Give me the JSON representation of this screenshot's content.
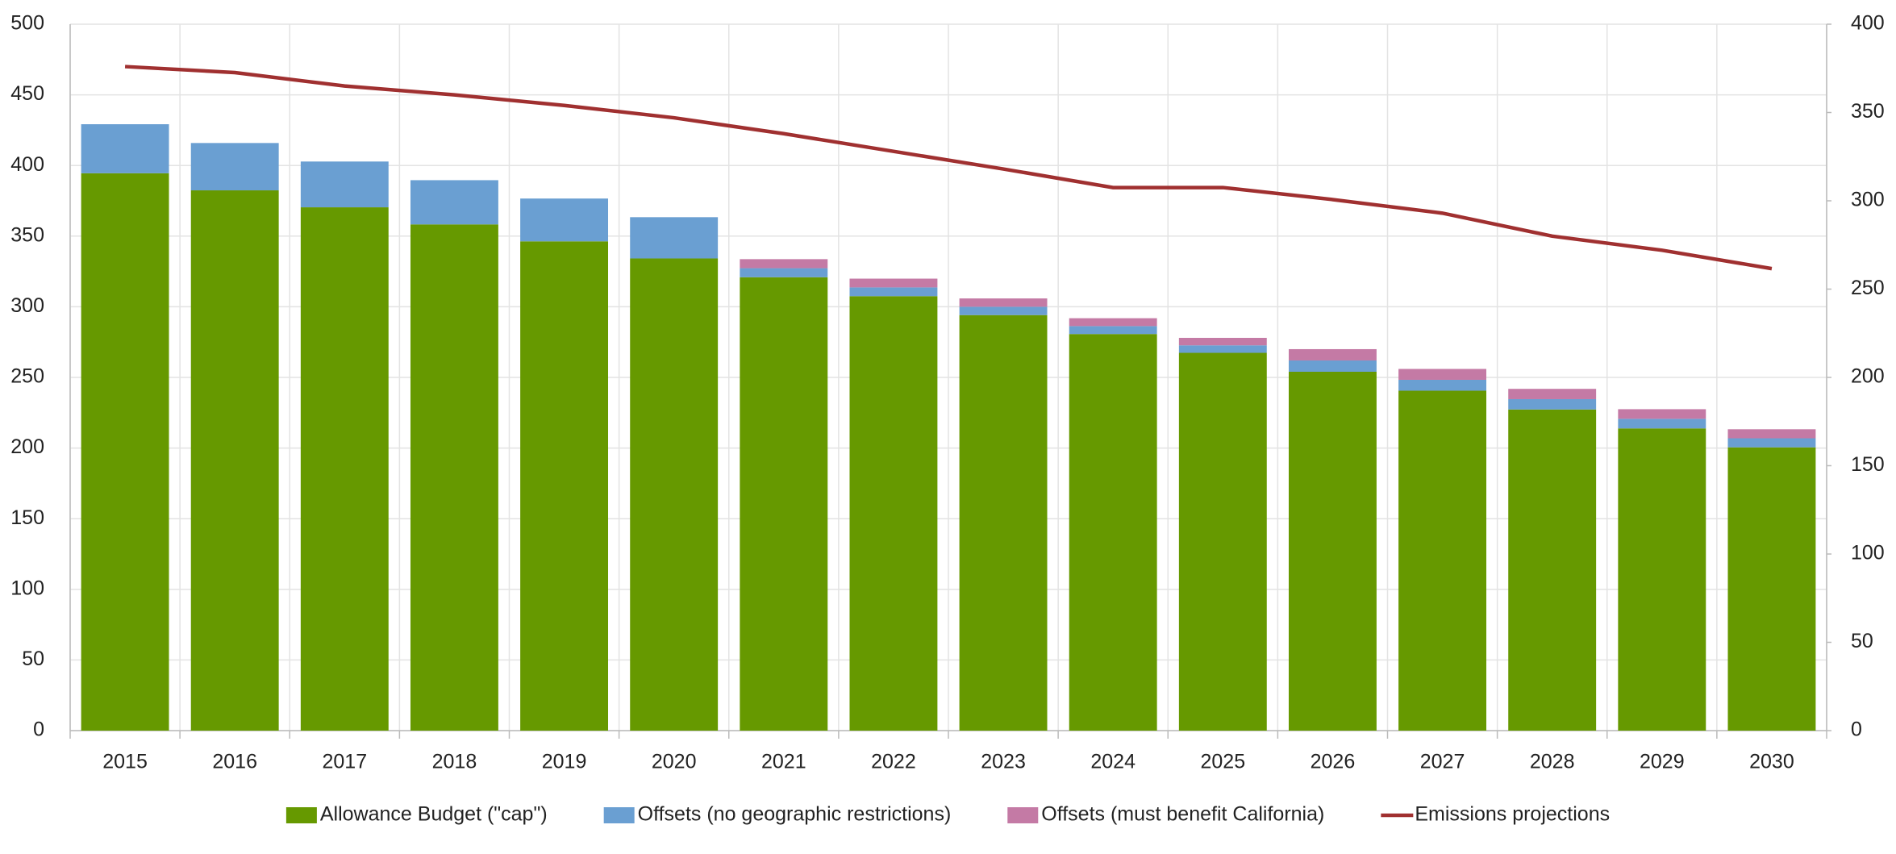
{
  "chart_data": {
    "type": "bar",
    "stacked": true,
    "grid": true,
    "legend": "bottom",
    "categories": [
      "2015",
      "2016",
      "2017",
      "2018",
      "2019",
      "2020",
      "2021",
      "2022",
      "2023",
      "2024",
      "2025",
      "2026",
      "2027",
      "2028",
      "2029",
      "2030"
    ],
    "series": [
      {
        "name": "Allowance Budget (\"cap\")",
        "color": "#669900",
        "values": [
          394.5,
          382.4,
          370.4,
          358.3,
          346.3,
          334.2,
          320.9,
          307.5,
          294.1,
          280.7,
          267.4,
          254.0,
          240.6,
          227.3,
          213.9,
          200.5
        ]
      },
      {
        "name": "Offsets (no geographic restrictions)",
        "color": "#6a9fd2",
        "values": [
          34.7,
          33.5,
          32.4,
          31.3,
          30.3,
          29.2,
          6.4,
          6.2,
          5.9,
          5.6,
          5.3,
          8.0,
          7.7,
          7.3,
          6.8,
          6.4
        ]
      },
      {
        "name": "Offsets (must benefit California)",
        "color": "#c47aa5",
        "values": [
          0,
          0,
          0,
          0,
          0,
          0,
          6.4,
          6.2,
          5.9,
          5.6,
          5.3,
          8.0,
          7.7,
          7.3,
          6.8,
          6.4
        ]
      },
      {
        "name": "Emissions projections",
        "color": "#a03030",
        "type": "line",
        "axis": "y2",
        "values": [
          376,
          372.6,
          365,
          360,
          354,
          347,
          338,
          328,
          318,
          307.5,
          307.5,
          300.7,
          293,
          280,
          272,
          261.6
        ]
      }
    ],
    "ylim": [
      0,
      500
    ],
    "yticks": [
      0,
      50,
      100,
      150,
      200,
      250,
      300,
      350,
      400,
      450,
      500
    ],
    "y2lim": [
      0,
      400
    ],
    "y2ticks": [
      0,
      50,
      100,
      150,
      200,
      250,
      300,
      350,
      400
    ]
  }
}
